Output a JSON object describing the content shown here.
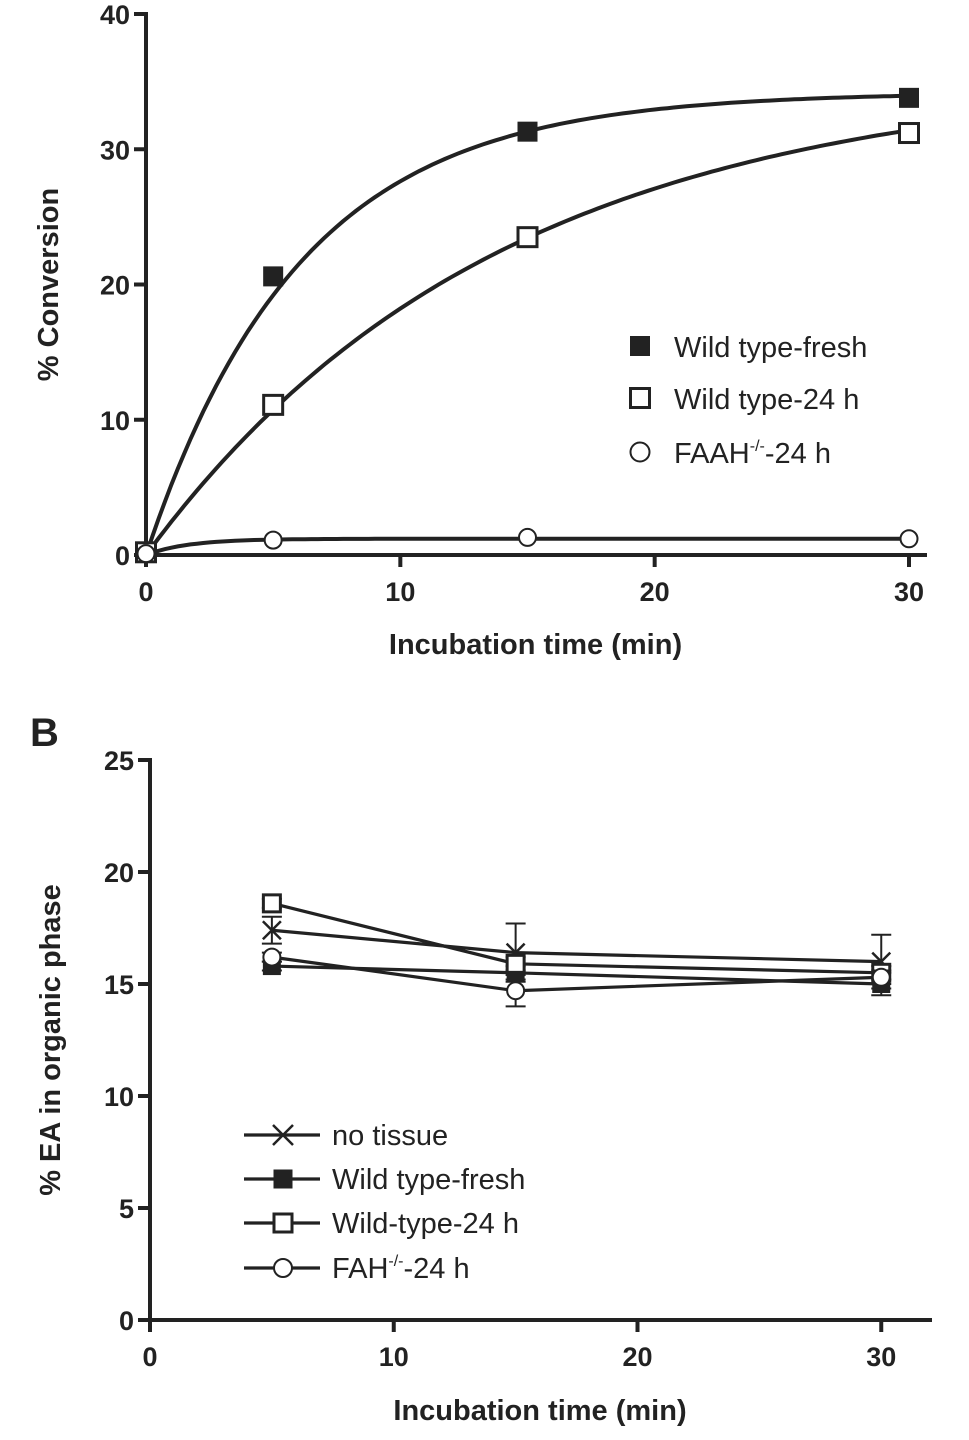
{
  "chart_data": [
    {
      "type": "line",
      "panel": "",
      "xlabel": "Incubation time (min)",
      "ylabel": "% Conversion",
      "xlim": [
        0,
        30
      ],
      "ylim": [
        0,
        40
      ],
      "xticks": [
        0,
        10,
        20,
        30
      ],
      "yticks": [
        0,
        10,
        20,
        30,
        40
      ],
      "grid": false,
      "legend_position": "right-middle",
      "series": [
        {
          "name": "Wild type-fresh",
          "marker": "filled-square",
          "x": [
            0,
            5,
            15,
            30
          ],
          "y": [
            0.2,
            20.6,
            31.3,
            33.8
          ],
          "fit": {
            "plateau": 34.2,
            "k": 0.165
          }
        },
        {
          "name": "Wild type-24 h",
          "marker": "open-square",
          "x": [
            0,
            5,
            15,
            30
          ],
          "y": [
            0.2,
            11.1,
            23.5,
            31.2
          ],
          "fit": {
            "plateau": 35.5,
            "k": 0.072
          }
        },
        {
          "name": "FAAH",
          "name_superscript": "-/-",
          "name_suffix": "-24 h",
          "marker": "open-circle",
          "x": [
            0,
            5,
            15,
            30
          ],
          "y": [
            0.1,
            1.1,
            1.3,
            1.2
          ],
          "fit": {
            "plateau": 1.2,
            "k": 0.6
          }
        }
      ]
    },
    {
      "type": "line",
      "panel": "B",
      "xlabel": "Incubation time (min)",
      "ylabel": "% EA in organic phase",
      "xlim": [
        0,
        32
      ],
      "ylim": [
        0,
        25
      ],
      "xticks": [
        0,
        10,
        20,
        30
      ],
      "yticks": [
        0,
        5,
        10,
        15,
        20,
        25
      ],
      "grid": false,
      "legend_position": "bottom-left",
      "series": [
        {
          "name": "no tissue",
          "marker": "x",
          "x": [
            5,
            15,
            30
          ],
          "y": [
            17.4,
            16.4,
            16.0
          ],
          "err": [
            0.6,
            1.3,
            1.2
          ]
        },
        {
          "name": "Wild type-fresh",
          "marker": "filled-square",
          "x": [
            5,
            15,
            30
          ],
          "y": [
            15.8,
            15.5,
            15.0
          ],
          "err": [
            0.2,
            0.3,
            0.5
          ]
        },
        {
          "name": "Wild-type-24 h",
          "marker": "open-square",
          "x": [
            5,
            15,
            30
          ],
          "y": [
            18.6,
            15.9,
            15.5
          ],
          "err": [
            0.2,
            0.3,
            0.3
          ]
        },
        {
          "name": "FAH",
          "name_superscript": "-/-",
          "name_suffix": "-24 h",
          "marker": "open-circle",
          "x": [
            5,
            15,
            30
          ],
          "y": [
            16.2,
            14.7,
            15.3
          ],
          "err": [
            0.2,
            0.7,
            0.3
          ]
        }
      ]
    }
  ]
}
